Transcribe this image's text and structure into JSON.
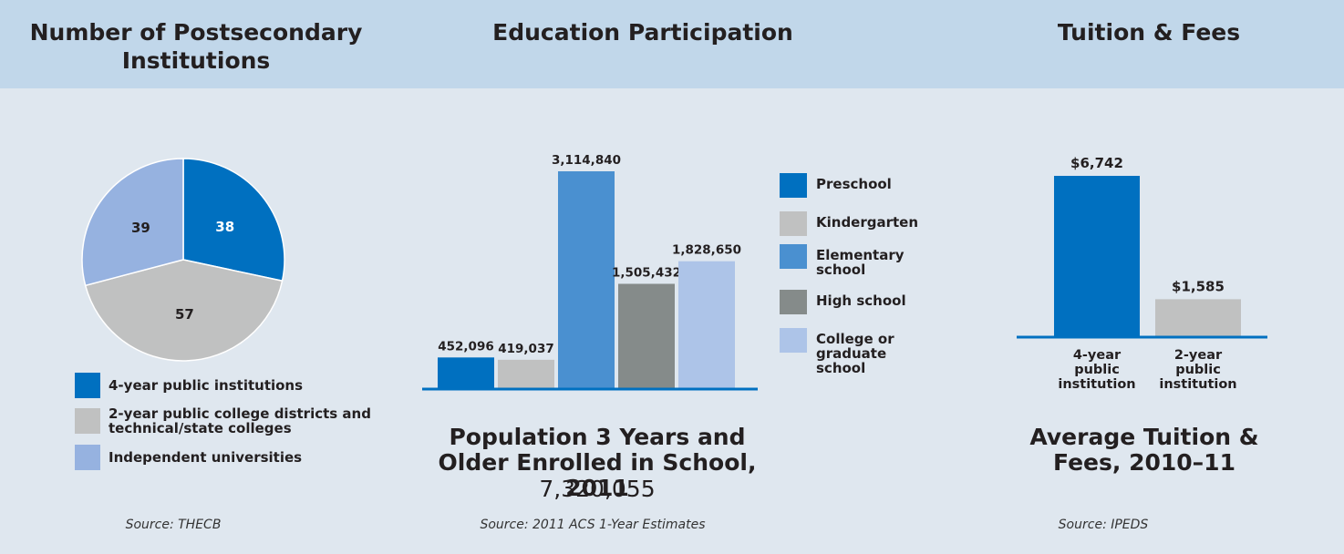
{
  "headers": {
    "institutions": "Number of Postsecondary Institutions",
    "participation": "Education Participation",
    "tuition": "Tuition & Fees"
  },
  "colors": {
    "header_bg": "#c1d7ea",
    "page_bg": "#dfe7ef",
    "blue": "#0070c0",
    "gray": "#c0c1c1",
    "mid_blue": "#4a90d0",
    "dark_gray": "#858b8a",
    "light_blue": "#adc4e8",
    "pie_light_blue": "#96b2e0"
  },
  "chart_data": [
    {
      "type": "pie",
      "slices": [
        {
          "name": "4-year public institutions",
          "value": 38,
          "color": "#0070c0"
        },
        {
          "name": "2-year public college districts and technical/state colleges",
          "value": 57,
          "color": "#c0c1c1"
        },
        {
          "name": "Independent universities",
          "value": 39,
          "color": "#96b2e0"
        }
      ],
      "legend": [
        {
          "label": "4-year public institutions",
          "color": "#0070c0"
        },
        {
          "label": "2-year public college districts and technical/state colleges",
          "color": "#c0c1c1"
        },
        {
          "label": "Independent universities",
          "color": "#96b2e0"
        }
      ],
      "source": "Source: THECB"
    },
    {
      "type": "bar",
      "categories": [
        "Preschool",
        "Kindergarten",
        "Elementary school",
        "High school",
        "College or graduate school"
      ],
      "values": [
        452096,
        419037,
        3114840,
        1505432,
        1828650
      ],
      "value_labels": [
        "452,096",
        "419,037",
        "3,114,840",
        "1,505,432",
        "1,828,650"
      ],
      "colors": [
        "#0070c0",
        "#c0c1c1",
        "#4a90d0",
        "#858b8a",
        "#adc4e8"
      ],
      "legend": [
        {
          "label": "Preschool",
          "color": "#0070c0"
        },
        {
          "label": "Kindergarten",
          "color": "#c0c1c1"
        },
        {
          "label": "Elementary school",
          "color": "#4a90d0"
        },
        {
          "label": "High school",
          "color": "#858b8a"
        },
        {
          "label": "College or graduate school",
          "color": "#adc4e8"
        }
      ],
      "ylim": [
        0,
        3114840
      ],
      "title": "Population 3 Years and Older Enrolled in School, 2011",
      "total": "7,320,055",
      "source": "Source: 2011 ACS 1-Year Estimates"
    },
    {
      "type": "bar",
      "categories": [
        "4-year public institution",
        "2-year public institution"
      ],
      "values": [
        6742,
        1585
      ],
      "value_labels": [
        "$6,742",
        "$1,585"
      ],
      "colors": [
        "#0070c0",
        "#c0c1c1"
      ],
      "ylim": [
        0,
        6742
      ],
      "title": "Average Tuition & Fees, 2010–11",
      "source": "Source: IPEDS"
    }
  ]
}
